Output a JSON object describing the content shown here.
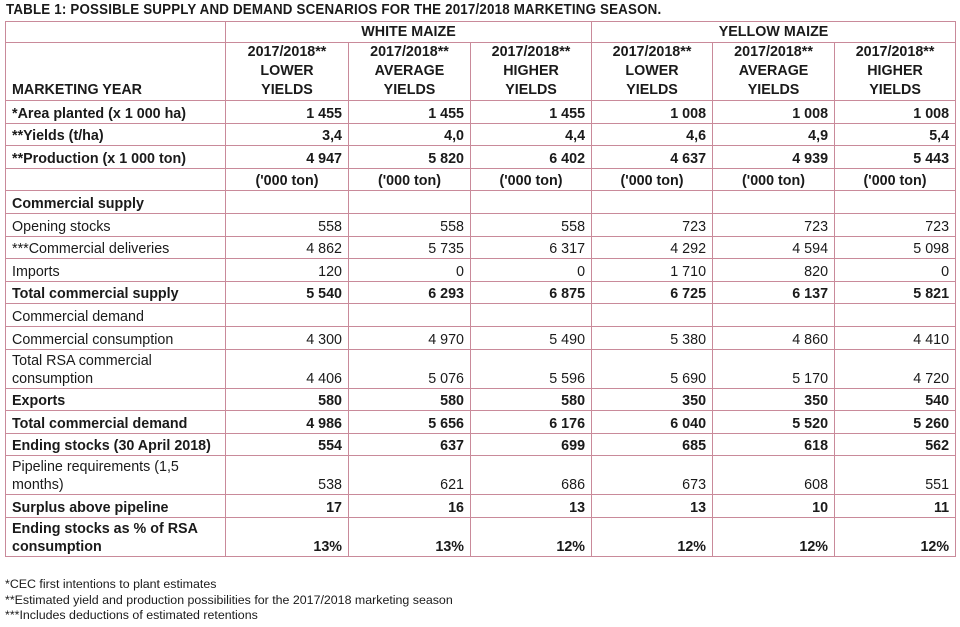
{
  "title": "TABLE 1: POSSIBLE SUPPLY AND DEMAND SCENARIOS FOR THE 2017/2018 MARKETING SEASON.",
  "groups": [
    "WHITE MAIZE",
    "YELLOW MAIZE"
  ],
  "header_label": "MARKETING YEAR",
  "columns": [
    {
      "l1": "2017/2018**",
      "l2": "LOWER",
      "l3": "YIELDS"
    },
    {
      "l1": "2017/2018**",
      "l2": "AVERAGE",
      "l3": "YIELDS"
    },
    {
      "l1": "2017/2018**",
      "l2": "HIGHER",
      "l3": "YIELDS"
    },
    {
      "l1": "2017/2018**",
      "l2": "LOWER",
      "l3": "YIELDS"
    },
    {
      "l1": "2017/2018**",
      "l2": "AVERAGE",
      "l3": "YIELDS"
    },
    {
      "l1": "2017/2018**",
      "l2": "HIGHER",
      "l3": "YIELDS"
    }
  ],
  "rows": [
    {
      "label": "*Area planted (x 1 000 ha)",
      "bold": true,
      "tall": false,
      "values": [
        "1 455",
        "1 455",
        "1 455",
        "1 008",
        "1 008",
        "1 008"
      ]
    },
    {
      "label": "**Yields (t/ha)",
      "bold": true,
      "tall": false,
      "values": [
        "3,4",
        "4,0",
        "4,4",
        "4,6",
        "4,9",
        "5,4"
      ]
    },
    {
      "label": "**Production (x 1 000 ton)",
      "bold": true,
      "tall": false,
      "values": [
        "4 947",
        "5 820",
        "6 402",
        "4 637",
        "4 939",
        "5 443"
      ]
    },
    {
      "label": "",
      "bold": true,
      "tall": false,
      "center": true,
      "values": [
        "('000 ton)",
        "('000 ton)",
        "('000 ton)",
        "('000 ton)",
        "('000 ton)",
        "('000 ton)"
      ]
    },
    {
      "label": "Commercial supply",
      "bold": true,
      "tall": false,
      "values": [
        "",
        "",
        "",
        "",
        "",
        ""
      ]
    },
    {
      "label": "Opening stocks",
      "bold": false,
      "tall": false,
      "values": [
        "558",
        "558",
        "558",
        "723",
        "723",
        "723"
      ]
    },
    {
      "label": "***Commercial deliveries",
      "bold": false,
      "tall": false,
      "values": [
        "4 862",
        "5 735",
        "6 317",
        "4 292",
        "4 594",
        "5 098"
      ]
    },
    {
      "label": "Imports",
      "bold": false,
      "tall": false,
      "values": [
        "120",
        "0",
        "0",
        "1 710",
        "820",
        "0"
      ]
    },
    {
      "label": "Total commercial supply",
      "bold": true,
      "tall": false,
      "values": [
        "5 540",
        "6 293",
        "6 875",
        "6 725",
        "6 137",
        "5 821"
      ]
    },
    {
      "label": "Commercial demand",
      "bold": false,
      "tall": false,
      "values": [
        "",
        "",
        "",
        "",
        "",
        ""
      ]
    },
    {
      "label": "Commercial consumption",
      "bold": false,
      "tall": false,
      "values": [
        "4 300",
        "4 970",
        "5 490",
        "5 380",
        "4 860",
        "4 410"
      ]
    },
    {
      "label": "Total RSA commercial consumption",
      "bold": false,
      "tall": true,
      "values": [
        "4 406",
        "5 076",
        "5 596",
        "5 690",
        "5 170",
        "4 720"
      ]
    },
    {
      "label": "Exports",
      "bold": true,
      "tall": false,
      "values": [
        "580",
        "580",
        "580",
        "350",
        "350",
        "540"
      ]
    },
    {
      "label": "Total commercial demand",
      "bold": true,
      "tall": false,
      "values": [
        "4 986",
        "5 656",
        "6 176",
        "6 040",
        "5 520",
        "5 260"
      ]
    },
    {
      "label": "Ending stocks (30 April 2018)",
      "bold": true,
      "tall": false,
      "values": [
        "554",
        "637",
        "699",
        "685",
        "618",
        "562"
      ]
    },
    {
      "label": "Pipeline requirements (1,5 months)",
      "bold": false,
      "tall": true,
      "values": [
        "538",
        "621",
        "686",
        "673",
        "608",
        "551"
      ]
    },
    {
      "label": "Surplus above pipeline",
      "bold": true,
      "tall": false,
      "values": [
        "17",
        "16",
        "13",
        "13",
        "10",
        "11"
      ]
    },
    {
      "label": "Ending stocks as % of RSA consumption",
      "bold": true,
      "tall": true,
      "values": [
        "13%",
        "13%",
        "12%",
        "12%",
        "12%",
        "12%"
      ]
    }
  ],
  "footnotes": [
    "*CEC first intentions to plant estimates",
    "**Estimated yield and production possibilities for the 2017/2018 marketing season",
    "***Includes deductions of estimated retentions"
  ]
}
